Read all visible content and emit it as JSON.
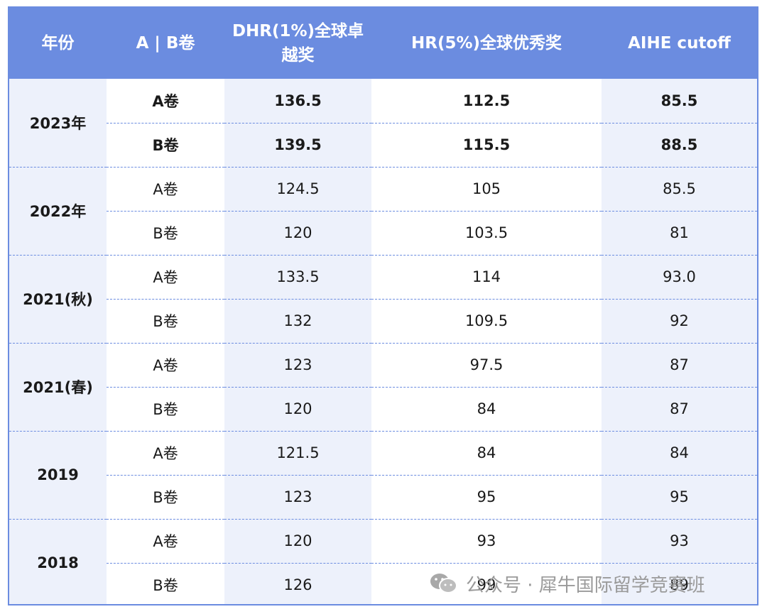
{
  "headers": [
    "年份",
    "A | B卷",
    "DHR(1%)全球卓越奖",
    "HR(5%)全球优秀奖",
    "AIHE cutoff"
  ],
  "groups": [
    {
      "year": "2023年",
      "rows": [
        {
          "paper": "A卷",
          "dhr": "136.5",
          "hr": "112.5",
          "aihe": "85.5"
        },
        {
          "paper": "B卷",
          "dhr": "139.5",
          "hr": "115.5",
          "aihe": "88.5"
        }
      ]
    },
    {
      "year": "2022年",
      "rows": [
        {
          "paper": "A卷",
          "dhr": "124.5",
          "hr": "105",
          "aihe": "85.5"
        },
        {
          "paper": "B卷",
          "dhr": "120",
          "hr": "103.5",
          "aihe": "81"
        }
      ]
    },
    {
      "year": "2021(秋)",
      "rows": [
        {
          "paper": "A卷",
          "dhr": "133.5",
          "hr": "114",
          "aihe": "93.0"
        },
        {
          "paper": "B卷",
          "dhr": "132",
          "hr": "109.5",
          "aihe": "92"
        }
      ]
    },
    {
      "year": "2021(春)",
      "rows": [
        {
          "paper": "A卷",
          "dhr": "123",
          "hr": "97.5",
          "aihe": "87"
        },
        {
          "paper": "B卷",
          "dhr": "120",
          "hr": "84",
          "aihe": "87"
        }
      ]
    },
    {
      "year": "2019",
      "rows": [
        {
          "paper": "A卷",
          "dhr": "121.5",
          "hr": "84",
          "aihe": "84"
        },
        {
          "paper": "B卷",
          "dhr": "123",
          "hr": "95",
          "aihe": "95"
        }
      ]
    },
    {
      "year": "2018",
      "rows": [
        {
          "paper": "A卷",
          "dhr": "120",
          "hr": "93",
          "aihe": "93"
        },
        {
          "paper": "B卷",
          "dhr": "126",
          "hr": "99",
          "aihe": "89"
        }
      ]
    }
  ],
  "watermark": {
    "text": "公众号 · 犀牛国际留学竞赛班",
    "icon": "wechat-icon"
  },
  "colors": {
    "header_bg": "#6b8ce0",
    "shaded_bg": "#edf1fb",
    "border": "#6b8ce0"
  }
}
